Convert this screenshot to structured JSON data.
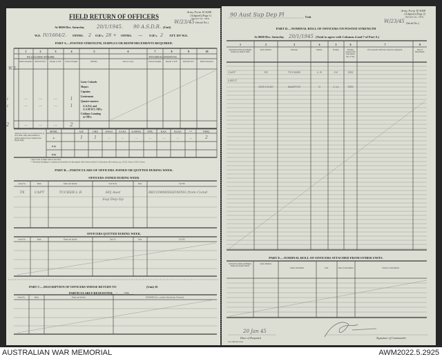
{
  "left_page": {
    "form_id": [
      "Army Form W.3008",
      "(Adapted) (Page 1)",
      "(Revised Jan., 1943)"
    ],
    "serial_value": "W/23/45",
    "serial_label": "(Serial No.)",
    "title": "FIELD RETURN OF OFFICERS",
    "at_line": {
      "prefix": "At 0600 Hrs. Saturday",
      "date": "20/1/1945.",
      "unit": "90 A.S.D.R.",
      "suffix": "(Unit)"
    },
    "we_line": {
      "we_label": "W.E.",
      "we_value": "IV/1664/2.",
      "offrs_label": "OFFRS.",
      "offrs_value": "2",
      "ors_label": "O.R's.",
      "ors_value": "28 +",
      "offrs2_label": "OFFRS.",
      "offrs2_value": "—",
      "ors2_label": "O.R's.",
      "ors2_value": "2",
      "att_label": "ATT. BY W.E."
    },
    "part_a": {
      "title": "PART A.—POSTED STRENGTH, SURPLUS OR REINFORCEMENTS REQUIRED.",
      "column_numbers": [
        "1",
        "2",
        "3",
        "4",
        "5",
        "6",
        "7",
        "8",
        "9",
        "10"
      ],
      "group_left": "W.E. EXCLUDING ATTACHED.",
      "group_right": "ATTACHED ALLOWED BY W.E.",
      "headers": [
        "Rein'ts Required.",
        "Deficient W.E.",
        "Surplus to W.E.",
        "Posted Strength.",
        "DETAIL.",
        "Arm or Corps.",
        "Posted Strength.",
        "Surplus to W.E.",
        "Deficient W.E.",
        "Rein'ts Required."
      ],
      "margin_note": "W.E.",
      "details": [
        "Lieut.-Colonels",
        "Majors",
        "Captains",
        "Lieutenants",
        "Quarter-masters",
        "A.A.N.S. and",
        "A.A.M.W.S. Offrs.",
        "Civilians Counting",
        "as Offrs."
      ],
      "captains_marks": [
        "1",
        "—",
        "—",
        "—",
        "1"
      ],
      "lieutenants_marks": [
        "1",
        "—",
        "—",
        "—",
        "1"
      ],
      "total_row": [
        "2",
        "—",
        "—",
        "—",
        "2"
      ],
      "analysis_note": "Analysis of Part A to be shown here by ALL units. Only units entitled to reinforcements need complete Part B(i) & B(ii).",
      "analysis_headers": [
        "DETAIL.",
        "",
        "A.I.F.",
        "C.M.F.",
        "A.W.A.S.",
        "A.A.N.S.",
        "A.A.M.W.S.",
        "CIVIL.",
        "R.A.N.",
        "R.A.A.F.",
        "* *",
        "TOTAL."
      ],
      "analysis_rows": [
        {
          "label": "A.",
          "values": [
            "",
            "1",
            "1",
            "—",
            "—",
            "—",
            "—",
            "—",
            "—",
            "—",
            "2"
          ]
        },
        {
          "label": "B (i)",
          "values": [
            "",
            "",
            "",
            "",
            "",
            "",
            "",
            "",
            "",
            "",
            ""
          ]
        },
        {
          "label": "B (ii)",
          "values": [
            "",
            "",
            "",
            "",
            "",
            "",
            "",
            "",
            "",
            "",
            ""
          ]
        }
      ],
      "footnotes": [
        "* Insert detail of higher ranks as necessary.",
        "* * Personnel belonging to a category not provided for in the analysis will be shown in this Col. Particulars will be shown, e.g., 10 U.K. Forces, 10 N.Z. Forces."
      ]
    },
    "part_b": {
      "title": "PART B.—PARTICULARS OF OFFICERS JOINED OR QUITTED DURING WEEK.",
      "joined_title": "OFFICERS JOINED DURING WEEK",
      "joined_headers": [
        "Army No.",
        "Rank.",
        "Name and Initials.",
        "Unit From.",
        "Date.",
        "CAUSE."
      ],
      "joined_rows": [
        [
          "TX",
          "CAPT",
          "TUCKER L R",
          "HQ Aust",
          "",
          "RECOMMISSIONING from Comd"
        ],
        [
          "",
          "",
          "",
          "Sup Dep Gp",
          "",
          ""
        ]
      ],
      "quitted_title": "OFFICERS QUITTED DURING WEEK.",
      "quitted_headers": [
        "Army No.",
        "Rank.",
        "Name and Initials.",
        "Unit To.",
        "Date.",
        "CAUSE."
      ]
    },
    "part_c": {
      "title_line1": "PART C.—DESCRIPTION OF OFFICERS WHOSE RETURN TO",
      "unit_suffix": "(Unit) IS",
      "title_line2": "PARTICULARLY REQUESTED.",
      "date_blank": "____/____/194___.",
      "headers": [
        "Army No.",
        "Rank.",
        "Name and Initials.",
        "REMARKS (i.e., present whereabouts if known)."
      ]
    }
  },
  "right_page": {
    "unit_value": "90 Aust Sup Dep Pl",
    "unit_label": "Unit",
    "form_id": [
      "Army Form W.3008",
      "(Adapted) (Page 2)",
      "(Revised Jan., 1943)"
    ],
    "serial_value": "W/23/45",
    "serial_label": "(Serial No.)",
    "part_d": {
      "title": "PART D.—NOMINAL ROLL OF OFFICERS ON POSTED STRENGTH",
      "at_prefix": "At 0600 Hrs. Saturday",
      "at_date": "20/1/1945",
      "at_suffix": "(Total to agree with Columns 4 and 7 of Part A.)",
      "column_numbers": [
        "1",
        "2",
        "3",
        "4",
        "5",
        "6",
        "7",
        "8"
      ],
      "headers": [
        "Substantive Rank and Higher Temporary Rank if Held.",
        "Army Number.",
        "Surname.",
        "Initials.",
        "Posting.",
        "Whether present with Unit (Insert Yes or No).",
        "If not present with Unit, state how employed.",
        "Date of Detachment."
      ],
      "rows": [
        [
          "CAPT",
          "TX",
          "TUCKER",
          "L R",
          "OC",
          "YES",
          "",
          ""
        ],
        [
          "LIEUT",
          "NX153583",
          "BARTON",
          "G",
          "2 i/c",
          "YES",
          "",
          ""
        ]
      ]
    },
    "part_e": {
      "title": "PART E.—NOMINAL ROLL OF OFFICERS ATTACHED FROM OTHER UNITS.",
      "headers": [
        "Substantive Rank and Higher Temporary Rank if Held.",
        "Army Number.",
        "Name and Initials.",
        "Unit.",
        "Date of Attachment.",
        "Nature of Attachment."
      ]
    },
    "despatch_date": "20 Jan 45",
    "despatch_label": "Date of Despatch",
    "signature_label": "Signature of Commander",
    "printer_note": "A.W. 396 8/43 10/43"
  },
  "footer": {
    "left": "AUSTRALIAN WAR MEMORIAL",
    "right": "AWM2022.5.2925"
  },
  "colors": {
    "paper": "#dfe1d6",
    "background": "#262626",
    "ink": "#2b2b2b",
    "handwriting": "#6b6e78"
  }
}
